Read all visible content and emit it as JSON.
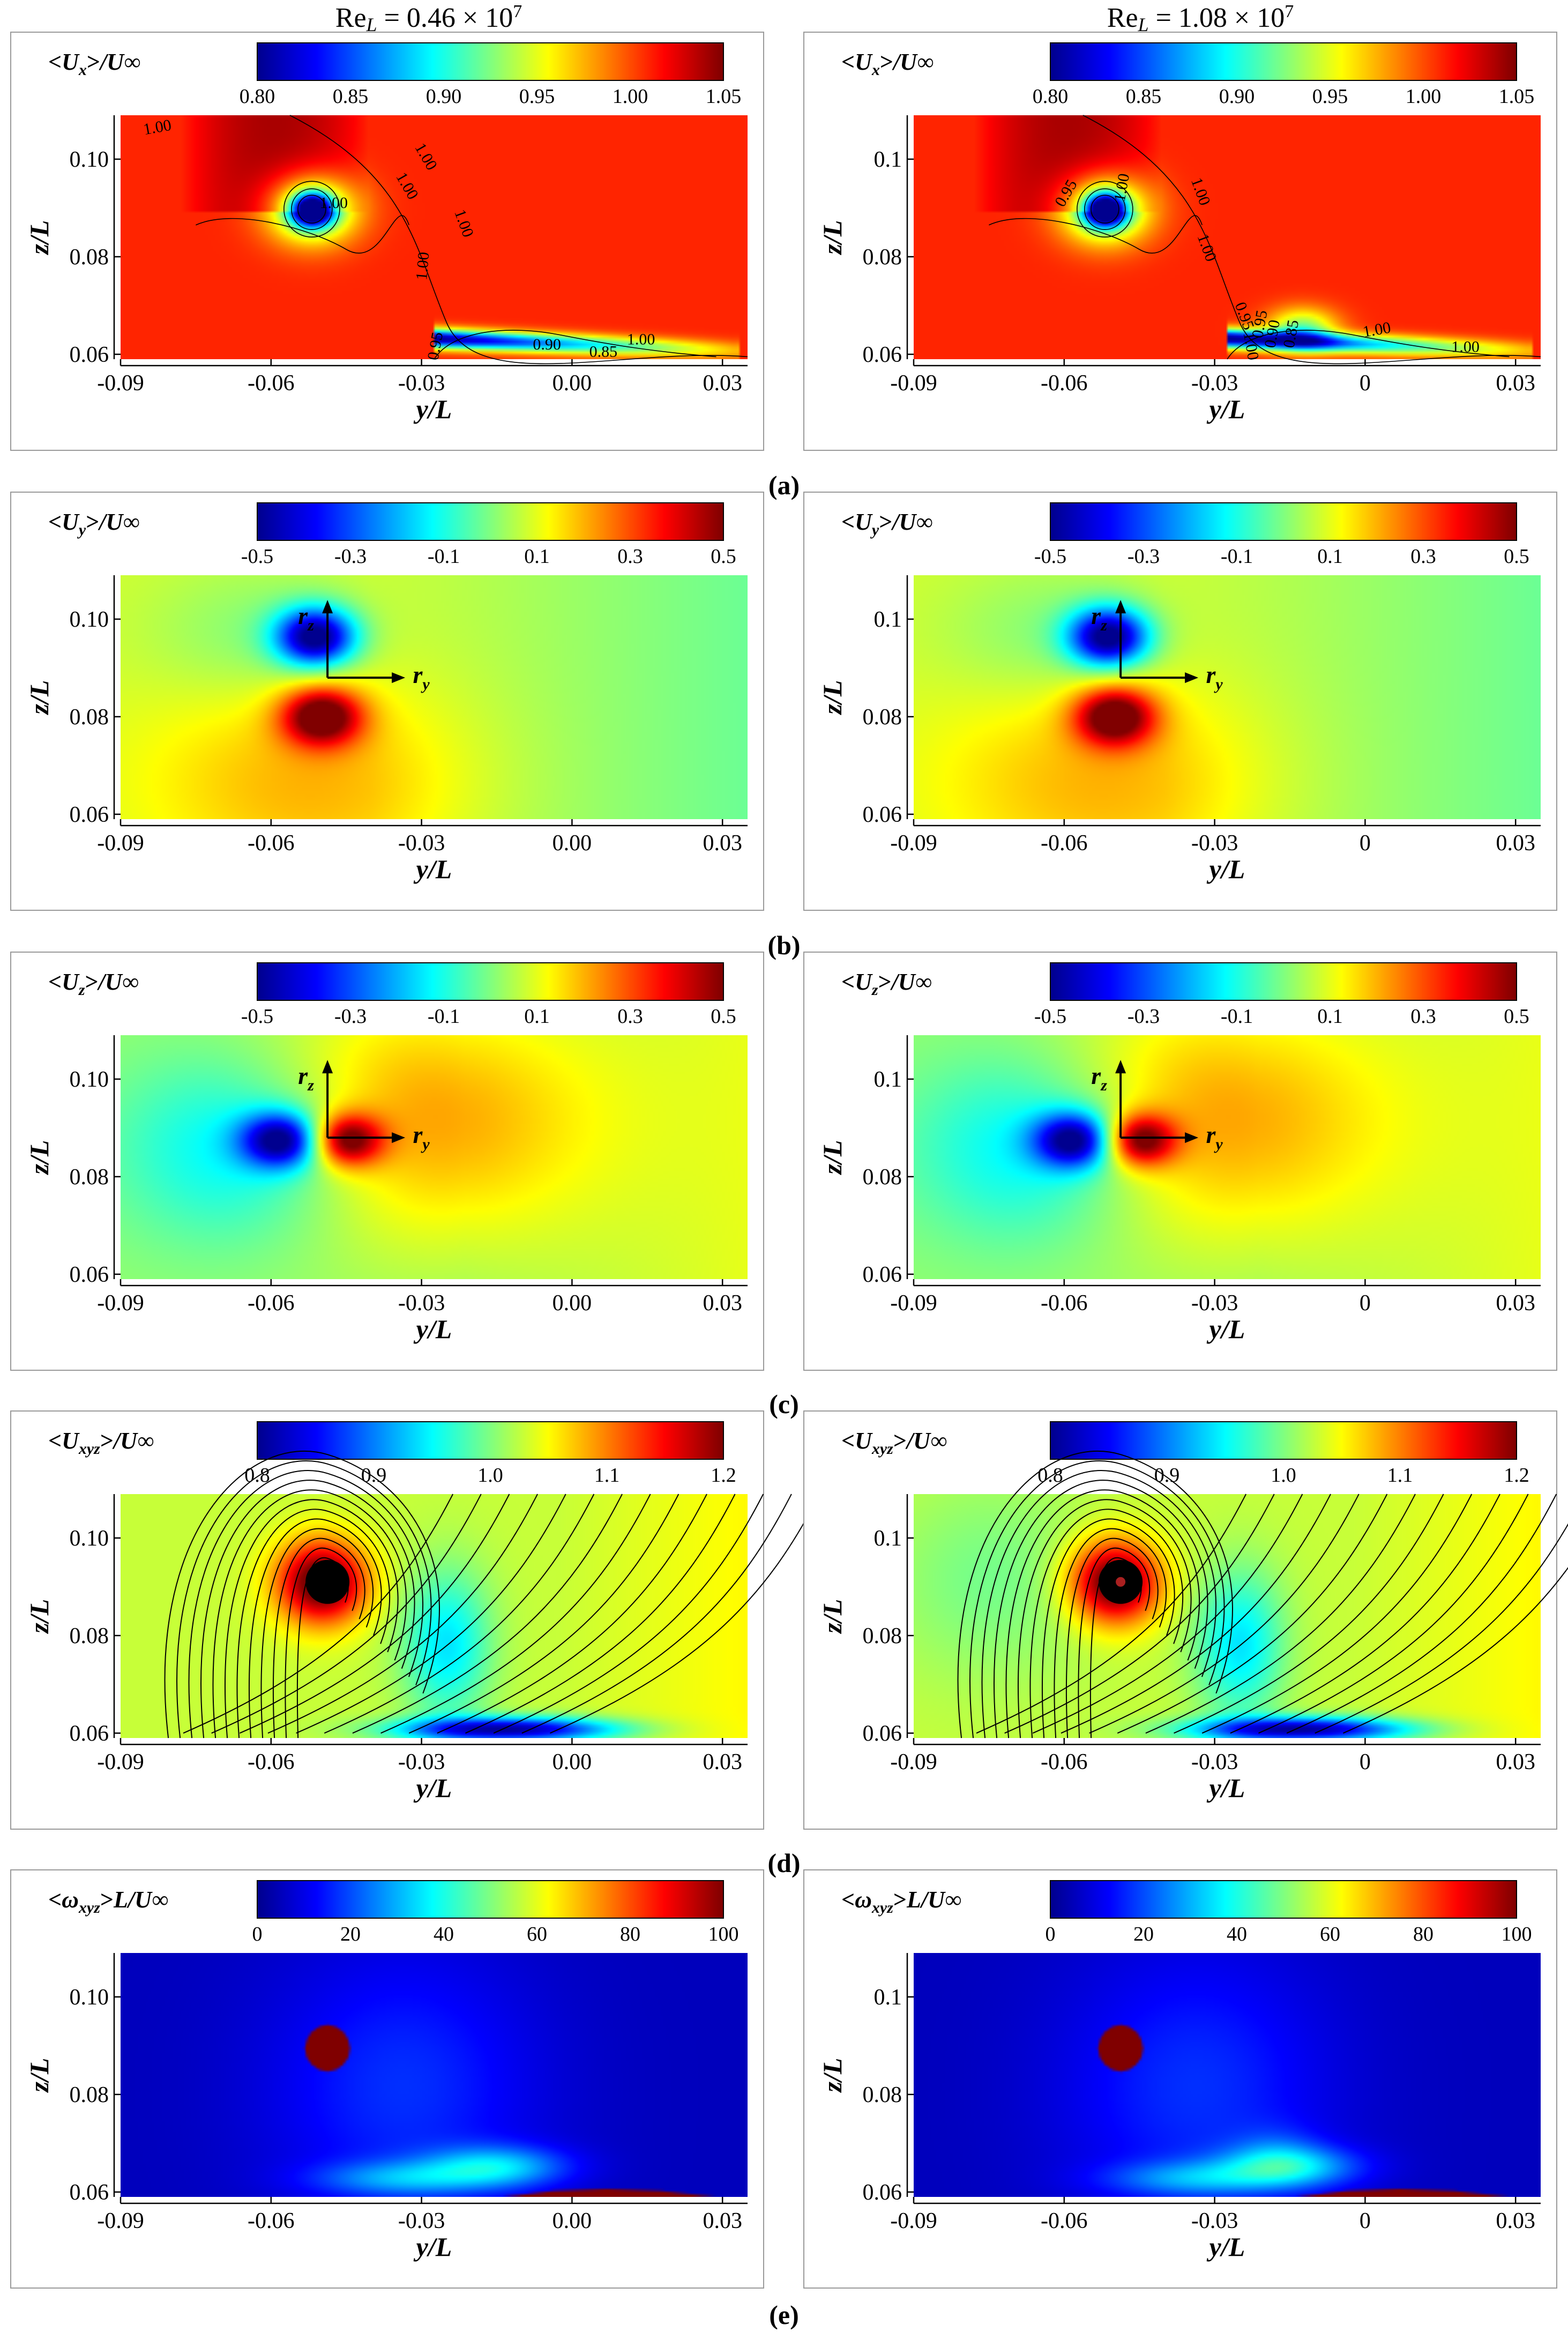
{
  "figure": {
    "column_headers": [
      {
        "prefix": "Re",
        "sub": "L",
        "value": " = 0.46 × 10",
        "exp": "7"
      },
      {
        "prefix": "Re",
        "sub": "L",
        "value": " = 1.08 × 10",
        "exp": "7"
      }
    ],
    "panel_labels": [
      "(a)",
      "(b)",
      "(c)",
      "(d)",
      "(e)"
    ],
    "y_axis_label": "z/L",
    "x_axis_label": "y/L",
    "vector_labels": {
      "rz": "r",
      "rz_sub": "z",
      "ry": "r",
      "ry_sub": "y"
    }
  },
  "colors": {
    "colormap": [
      "#00008f",
      "#0000ff",
      "#0080ff",
      "#00ffff",
      "#80ff80",
      "#ffff00",
      "#ff8000",
      "#ff0000",
      "#800000"
    ],
    "contour_line": "#000000"
  },
  "chart_data": [
    {
      "id": "a-left",
      "type": "heatmap",
      "title": "<Ux>/U∞",
      "quantity": "Ux",
      "xlabel": "y/L",
      "ylabel": "z/L",
      "xlim": [
        -0.09,
        0.035
      ],
      "ylim": [
        0.059,
        0.109
      ],
      "xticks": [
        "-0.09",
        "-0.06",
        "-0.03",
        "0.00",
        "0.03"
      ],
      "yticks": [
        "0.06",
        "0.08",
        "0.10"
      ],
      "colorbar": {
        "min": 0.8,
        "max": 1.05,
        "ticks": [
          "0.80",
          "0.85",
          "0.90",
          "0.95",
          "1.00",
          "1.05"
        ]
      },
      "contour_labels": [
        "1.00",
        "1.00",
        "1.00",
        "1.00",
        "1.00",
        "1.00",
        "0.95",
        "0.90",
        "0.85",
        "1.00"
      ]
    },
    {
      "id": "a-right",
      "type": "heatmap",
      "title": "<Ux>/U∞",
      "quantity": "Ux",
      "xlabel": "y/L",
      "ylabel": "z/L",
      "xlim": [
        -0.09,
        0.035
      ],
      "ylim": [
        0.059,
        0.109
      ],
      "xticks": [
        "-0.09",
        "-0.06",
        "-0.03",
        "0",
        "0.03"
      ],
      "yticks": [
        "0.06",
        "0.08",
        "0.1"
      ],
      "colorbar": {
        "min": 0.8,
        "max": 1.05,
        "ticks": [
          "0.80",
          "0.85",
          "0.90",
          "0.95",
          "1.00",
          "1.05"
        ]
      },
      "contour_labels": [
        "0.95",
        "1.00",
        "1.00",
        "1.00",
        "0.95",
        "0.95",
        "0.90",
        "0.85",
        "1.00",
        "1.00",
        "1.00"
      ]
    },
    {
      "id": "b-left",
      "type": "heatmap",
      "title": "<Uy>/U∞",
      "quantity": "Uy",
      "xlabel": "y/L",
      "ylabel": "z/L",
      "xlim": [
        -0.09,
        0.035
      ],
      "ylim": [
        0.059,
        0.109
      ],
      "xticks": [
        "-0.09",
        "-0.06",
        "-0.03",
        "0.00",
        "0.03"
      ],
      "yticks": [
        "0.06",
        "0.08",
        "0.10"
      ],
      "colorbar": {
        "min": -0.5,
        "max": 0.5,
        "ticks": [
          "-0.5",
          "-0.3",
          "-0.1",
          "0.1",
          "0.3",
          "0.5"
        ]
      }
    },
    {
      "id": "b-right",
      "type": "heatmap",
      "title": "<Uy>/U∞",
      "quantity": "Uy",
      "xlabel": "y/L",
      "ylabel": "z/L",
      "xlim": [
        -0.09,
        0.035
      ],
      "ylim": [
        0.059,
        0.109
      ],
      "xticks": [
        "-0.09",
        "-0.06",
        "-0.03",
        "0",
        "0.03"
      ],
      "yticks": [
        "0.06",
        "0.08",
        "0.1"
      ],
      "colorbar": {
        "min": -0.5,
        "max": 0.5,
        "ticks": [
          "-0.5",
          "-0.3",
          "-0.1",
          "0.1",
          "0.3",
          "0.5"
        ]
      }
    },
    {
      "id": "c-left",
      "type": "heatmap",
      "title": "<Uz>/U∞",
      "quantity": "Uz",
      "xlabel": "y/L",
      "ylabel": "z/L",
      "xlim": [
        -0.09,
        0.035
      ],
      "ylim": [
        0.059,
        0.109
      ],
      "xticks": [
        "-0.09",
        "-0.06",
        "-0.03",
        "0.00",
        "0.03"
      ],
      "yticks": [
        "0.06",
        "0.08",
        "0.10"
      ],
      "colorbar": {
        "min": -0.5,
        "max": 0.5,
        "ticks": [
          "-0.5",
          "-0.3",
          "-0.1",
          "0.1",
          "0.3",
          "0.5"
        ]
      }
    },
    {
      "id": "c-right",
      "type": "heatmap",
      "title": "<Uz>/U∞",
      "quantity": "Uz",
      "xlabel": "y/L",
      "ylabel": "z/L",
      "xlim": [
        -0.09,
        0.035
      ],
      "ylim": [
        0.059,
        0.109
      ],
      "xticks": [
        "-0.09",
        "-0.06",
        "-0.03",
        "0",
        "0.03"
      ],
      "yticks": [
        "0.06",
        "0.08",
        "0.1"
      ],
      "colorbar": {
        "min": -0.5,
        "max": 0.5,
        "ticks": [
          "-0.5",
          "-0.3",
          "-0.1",
          "0.1",
          "0.3",
          "0.5"
        ]
      }
    },
    {
      "id": "d-left",
      "type": "heatmap",
      "title": "<Uxyz>/U∞",
      "quantity": "Uxyz",
      "xlabel": "y/L",
      "ylabel": "z/L",
      "xlim": [
        -0.09,
        0.035
      ],
      "ylim": [
        0.059,
        0.109
      ],
      "xticks": [
        "-0.09",
        "-0.06",
        "-0.03",
        "0.00",
        "0.03"
      ],
      "yticks": [
        "0.06",
        "0.08",
        "0.10"
      ],
      "colorbar": {
        "min": 0.8,
        "max": 1.2,
        "ticks": [
          "0.8",
          "0.9",
          "1.0",
          "1.1",
          "1.2"
        ]
      }
    },
    {
      "id": "d-right",
      "type": "heatmap",
      "title": "<Uxyz>/U∞",
      "quantity": "Uxyz",
      "xlabel": "y/L",
      "ylabel": "z/L",
      "xlim": [
        -0.09,
        0.035
      ],
      "ylim": [
        0.059,
        0.109
      ],
      "xticks": [
        "-0.09",
        "-0.06",
        "-0.03",
        "0",
        "0.03"
      ],
      "yticks": [
        "0.06",
        "0.08",
        "0.1"
      ],
      "colorbar": {
        "min": 0.8,
        "max": 1.2,
        "ticks": [
          "0.8",
          "0.9",
          "1.0",
          "1.1",
          "1.2"
        ]
      }
    },
    {
      "id": "e-left",
      "type": "heatmap",
      "title": "<ωxyz>L/U∞",
      "quantity": "omega",
      "xlabel": "y/L",
      "ylabel": "z/L",
      "xlim": [
        -0.09,
        0.035
      ],
      "ylim": [
        0.059,
        0.109
      ],
      "xticks": [
        "-0.09",
        "-0.06",
        "-0.03",
        "0.00",
        "0.03"
      ],
      "yticks": [
        "0.06",
        "0.08",
        "0.10"
      ],
      "colorbar": {
        "min": 0,
        "max": 100,
        "ticks": [
          "0",
          "20",
          "40",
          "60",
          "80",
          "100"
        ]
      }
    },
    {
      "id": "e-right",
      "type": "heatmap",
      "title": "<ωxyz>L/U∞",
      "quantity": "omega",
      "xlabel": "y/L",
      "ylabel": "z/L",
      "xlim": [
        -0.09,
        0.035
      ],
      "ylim": [
        0.059,
        0.109
      ],
      "xticks": [
        "-0.09",
        "-0.06",
        "-0.03",
        "0",
        "0.03"
      ],
      "yticks": [
        "0.06",
        "0.08",
        "0.1"
      ],
      "colorbar": {
        "min": 0,
        "max": 100,
        "ticks": [
          "0",
          "20",
          "40",
          "60",
          "80",
          "100"
        ]
      }
    }
  ]
}
